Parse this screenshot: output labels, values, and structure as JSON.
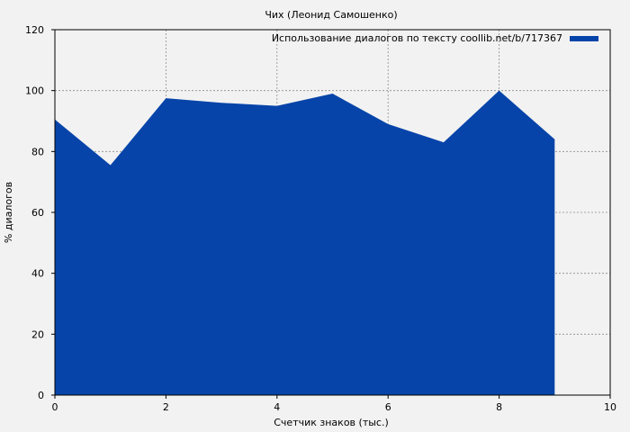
{
  "chart_data": {
    "type": "area",
    "title": "Чих (Леонид Самошенко)",
    "xlabel": "Счетчик знаков (тыс.)",
    "ylabel": "% диалогов",
    "xlim": [
      0,
      10
    ],
    "ylim": [
      0,
      120
    ],
    "xticks": [
      0,
      2,
      4,
      6,
      8,
      10
    ],
    "yticks": [
      0,
      20,
      40,
      60,
      80,
      100,
      120
    ],
    "grid": true,
    "legend_position": "top-right",
    "series": [
      {
        "name": "Использование диалогов по тексту coollib.net/b/717367",
        "color": "#0644a9",
        "x": [
          0,
          1,
          2,
          3,
          4,
          5,
          6,
          7,
          8,
          9
        ],
        "values": [
          90.5,
          75.5,
          97.5,
          96,
          95,
          99,
          89,
          83,
          100,
          84
        ]
      }
    ]
  }
}
